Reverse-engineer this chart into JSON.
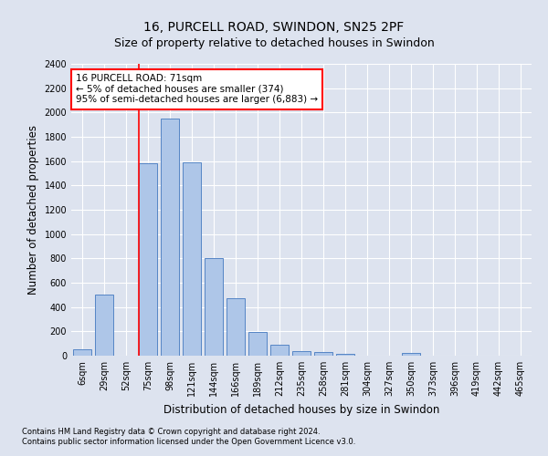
{
  "title": "16, PURCELL ROAD, SWINDON, SN25 2PF",
  "subtitle": "Size of property relative to detached houses in Swindon",
  "xlabel": "Distribution of detached houses by size in Swindon",
  "ylabel": "Number of detached properties",
  "categories": [
    "6sqm",
    "29sqm",
    "52sqm",
    "75sqm",
    "98sqm",
    "121sqm",
    "144sqm",
    "166sqm",
    "189sqm",
    "212sqm",
    "235sqm",
    "258sqm",
    "281sqm",
    "304sqm",
    "327sqm",
    "350sqm",
    "373sqm",
    "396sqm",
    "419sqm",
    "442sqm",
    "465sqm"
  ],
  "bar_values": [
    55,
    500,
    0,
    1580,
    1950,
    1590,
    800,
    470,
    195,
    90,
    35,
    28,
    18,
    0,
    0,
    20,
    0,
    0,
    0,
    0,
    0
  ],
  "bar_color": "#aec6e8",
  "bar_edge_color": "#5585c5",
  "vline_color": "red",
  "vline_index": 3,
  "annotation_text": "16 PURCELL ROAD: 71sqm\n← 5% of detached houses are smaller (374)\n95% of semi-detached houses are larger (6,883) →",
  "annotation_box_facecolor": "white",
  "annotation_box_edgecolor": "red",
  "ylim": [
    0,
    2400
  ],
  "yticks": [
    0,
    200,
    400,
    600,
    800,
    1000,
    1200,
    1400,
    1600,
    1800,
    2000,
    2200,
    2400
  ],
  "footer_line1": "Contains HM Land Registry data © Crown copyright and database right 2024.",
  "footer_line2": "Contains public sector information licensed under the Open Government Licence v3.0.",
  "bg_color": "#dde3ef",
  "plot_bg_color": "#dde3ef",
  "title_fontsize": 10,
  "subtitle_fontsize": 9,
  "tick_fontsize": 7,
  "ylabel_fontsize": 8.5,
  "xlabel_fontsize": 8.5,
  "footer_fontsize": 6,
  "annotation_fontsize": 7.5
}
